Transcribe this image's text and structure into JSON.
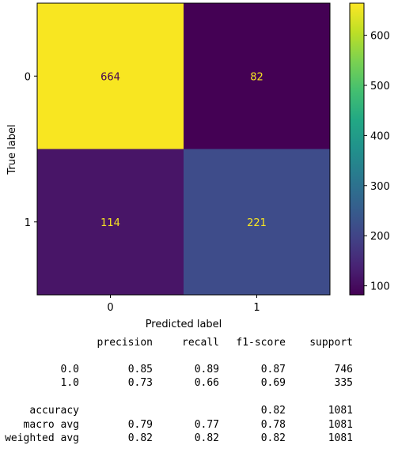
{
  "chart_data": {
    "type": "heatmap",
    "xlabel": "Predicted label",
    "ylabel": "True label",
    "x_ticklabels": [
      "0",
      "1"
    ],
    "y_ticklabels": [
      "0",
      "1"
    ],
    "matrix": [
      [
        664,
        82
      ],
      [
        114,
        221
      ]
    ],
    "matrix_labels": [
      [
        "664",
        "82"
      ],
      [
        "114",
        "221"
      ]
    ],
    "colormap": "viridis",
    "colorbar": {
      "min": 82,
      "max": 664,
      "ticks": [
        100,
        200,
        300,
        400,
        500,
        600
      ],
      "tick_labels": [
        "100",
        "200",
        "300",
        "400",
        "500",
        "600"
      ]
    },
    "colors": {
      "high_cell": "#f8e621",
      "low_cell": "#440154",
      "cell_114": "#481567",
      "cell_221": "#3e4c8a",
      "text_on_dark": "#f8e621",
      "text_on_light": "#440154"
    }
  },
  "report": {
    "headers": [
      "precision",
      "recall",
      "f1-score",
      "support"
    ],
    "rows": [
      {
        "label": "0.0",
        "precision": "0.85",
        "recall": "0.89",
        "f1": "0.87",
        "support": "746"
      },
      {
        "label": "1.0",
        "precision": "0.73",
        "recall": "0.66",
        "f1": "0.69",
        "support": "335"
      }
    ],
    "accuracy": {
      "label": "accuracy",
      "f1": "0.82",
      "support": "1081"
    },
    "summary": [
      {
        "label": "macro avg",
        "precision": "0.79",
        "recall": "0.77",
        "f1": "0.78",
        "support": "1081"
      },
      {
        "label": "weighted avg",
        "precision": "0.82",
        "recall": "0.82",
        "f1": "0.82",
        "support": "1081"
      }
    ]
  }
}
